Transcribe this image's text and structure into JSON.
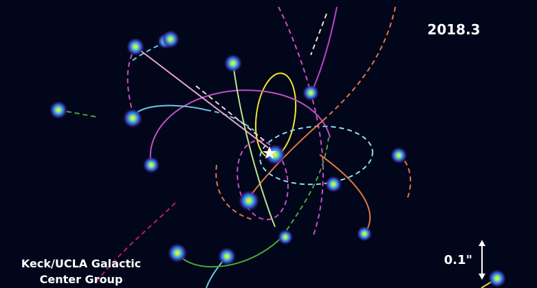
{
  "epoch": "2018.3",
  "scale_label": "0.1\"",
  "credit": [
    "Keck/UCLA Galactic",
    "Center Group"
  ]
}
